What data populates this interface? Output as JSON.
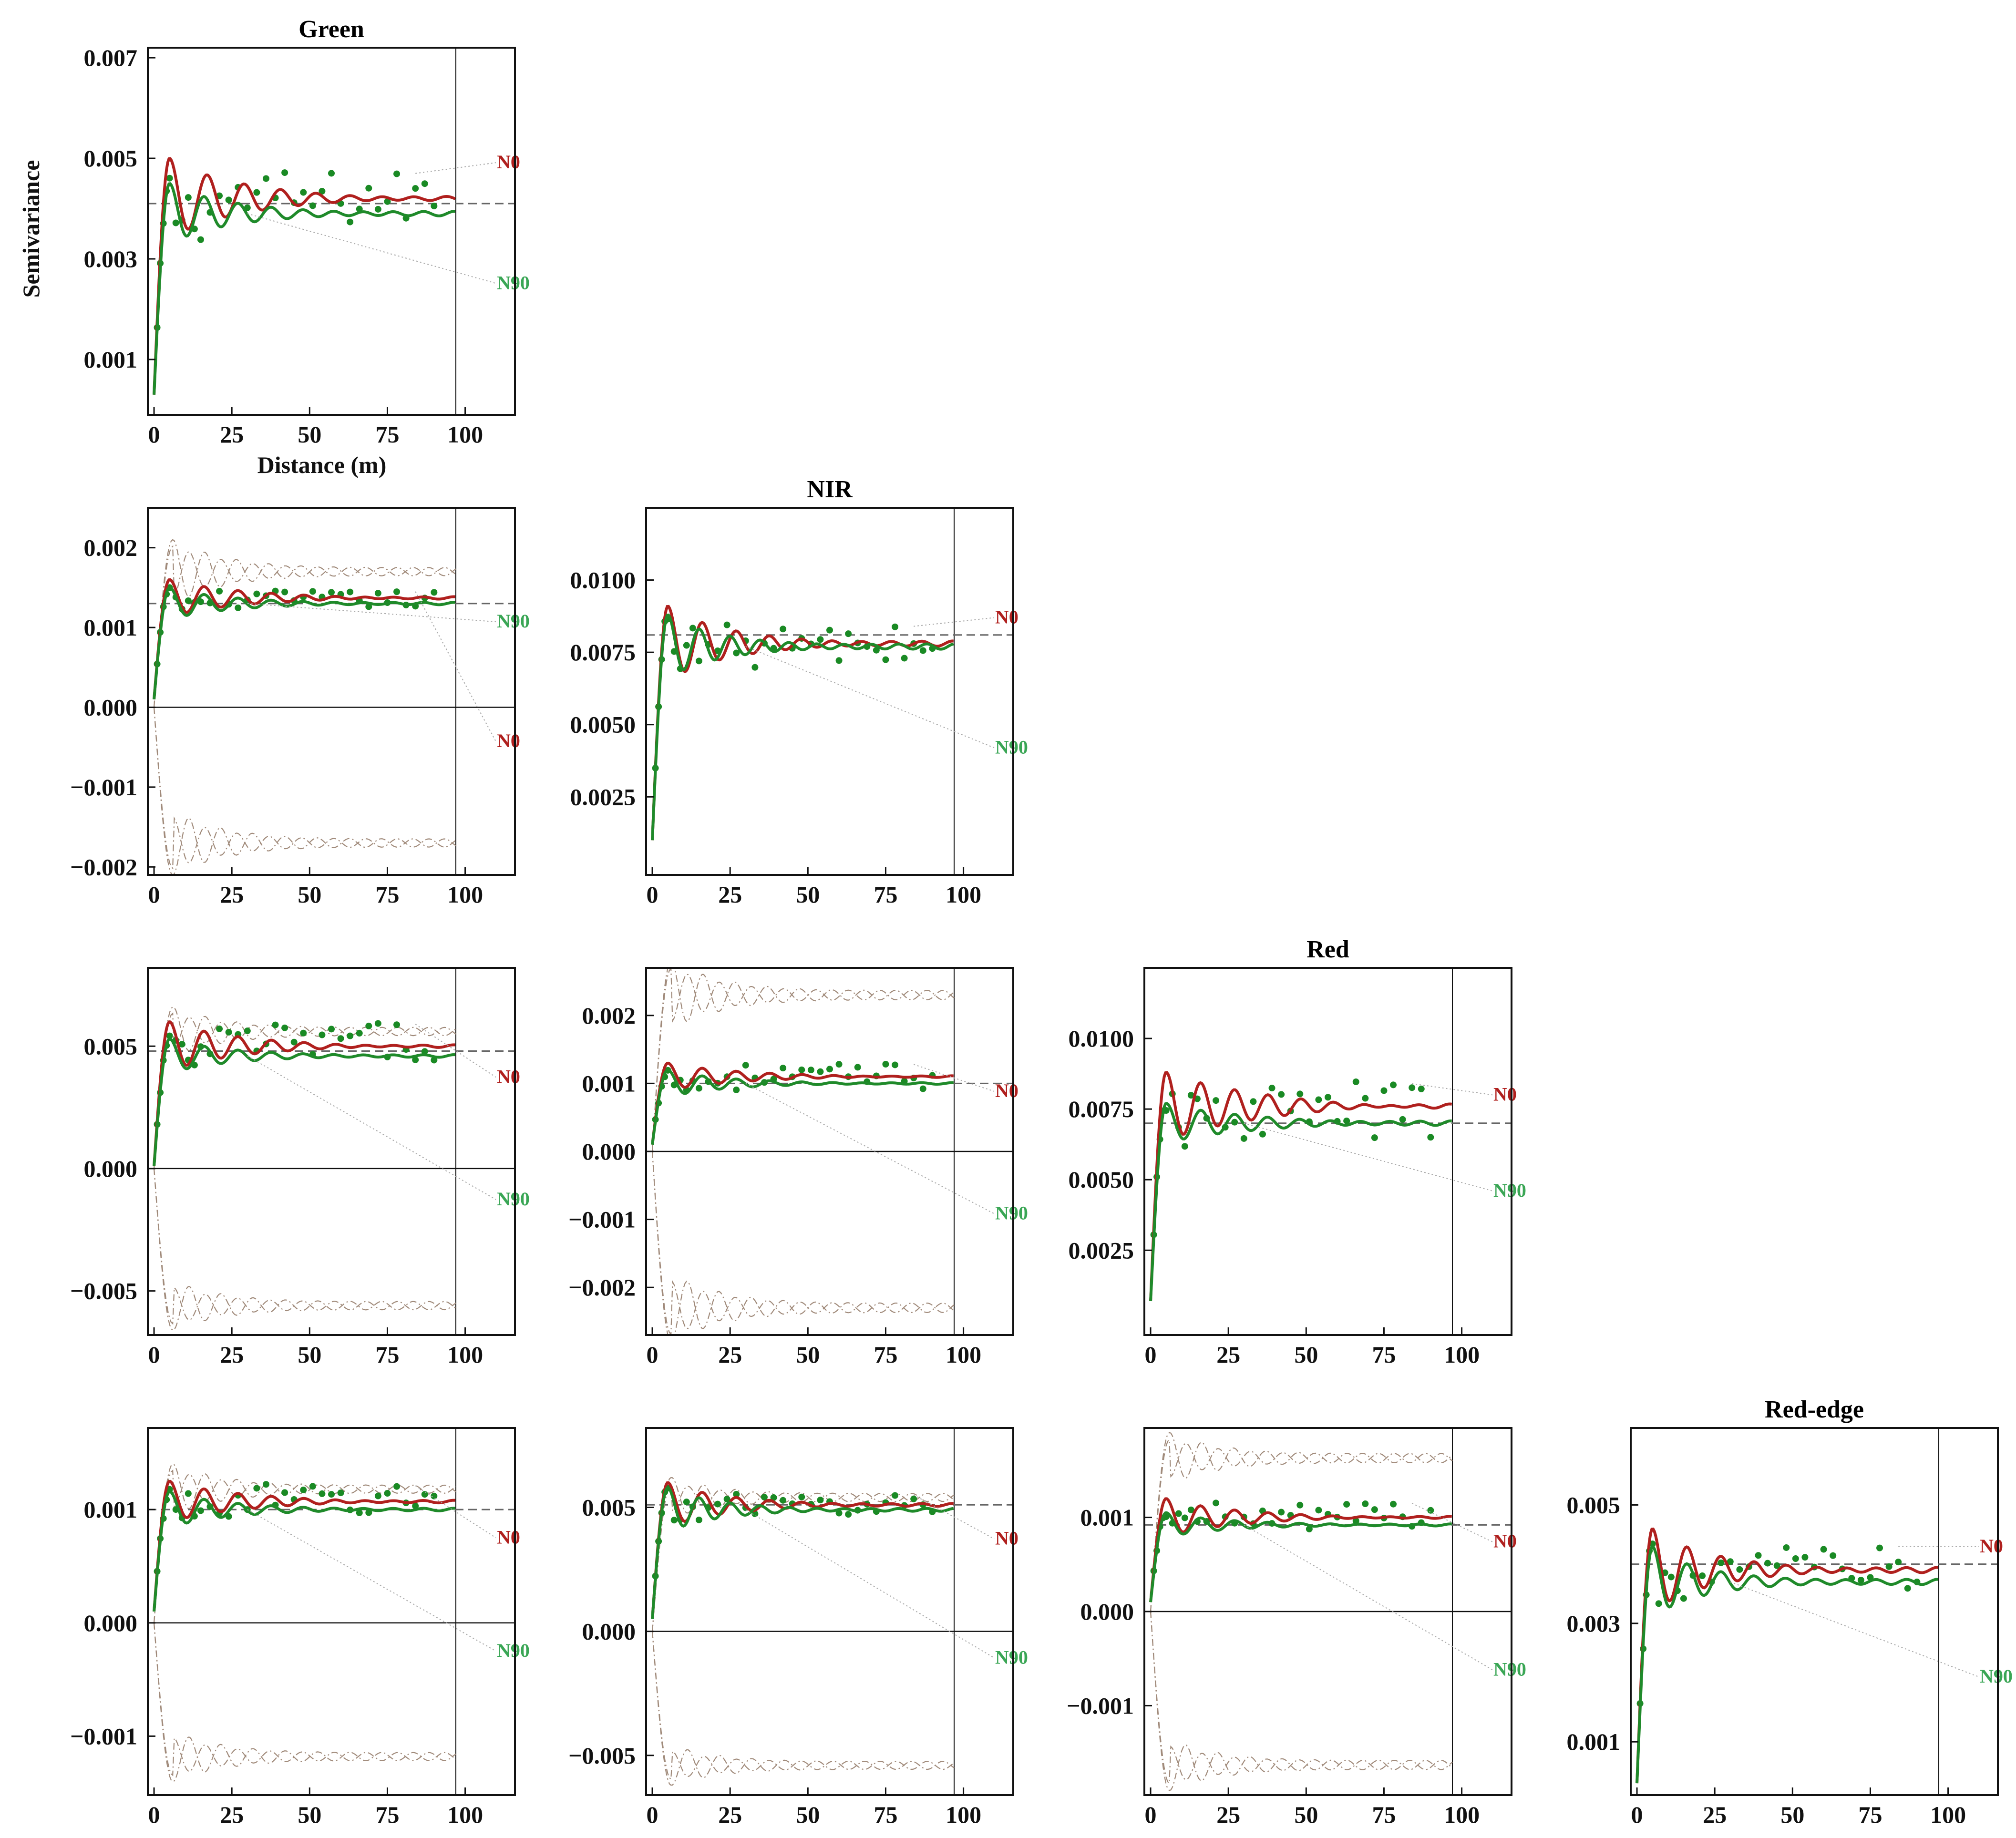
{
  "figure": {
    "ylabel": "Semivariance",
    "xlabel": "Distance (m)",
    "series_labels": [
      "N0",
      "N90"
    ],
    "colors": {
      "N0": "#b0201e",
      "N90": "#1f8a2a",
      "N90_label": "#3aa655",
      "points": "#1a8a24",
      "sill": "#666666",
      "envelope": "#a08a7a",
      "leader": "#aaaaaa",
      "axis": "#111111"
    }
  },
  "chart_data": [
    {
      "id": "green",
      "type": "scatter+line",
      "title": "Green",
      "row": 0,
      "col": 0,
      "x_ticks": [
        0,
        25,
        50,
        75,
        100
      ],
      "xlim": [
        -2,
        116
      ],
      "ylim": [
        -0.0001,
        0.0072
      ],
      "y_ticks": [
        0.001,
        0.003,
        0.005,
        0.007
      ],
      "y_tick_labels": [
        "0.001",
        "0.003",
        "0.005",
        "0.007"
      ],
      "sill": 0.0041,
      "zero_line": false,
      "envelope": null,
      "series": [
        {
          "name": "N0",
          "start": 0.0003,
          "sill": 0.0042,
          "peak": 0.005,
          "damping": 0.05,
          "period": 12
        },
        {
          "name": "N90",
          "start": 0.0003,
          "sill": 0.0039,
          "peak": 0.0045,
          "damping": 0.06,
          "period": 11
        }
      ],
      "points": {
        "mean": 0.0042,
        "spread": 0.0005
      },
      "label_y": {
        "N0": 0.0048,
        "N90": 0.0024
      },
      "xlabel": "Distance (m)",
      "ylabel": "Semivariance"
    },
    {
      "id": "green-nir",
      "type": "scatter+line",
      "title": "",
      "row": 1,
      "col": 0,
      "x_ticks": [
        0,
        25,
        50,
        75,
        100
      ],
      "xlim": [
        -2,
        116
      ],
      "ylim": [
        -0.0021,
        0.0025
      ],
      "y_ticks": [
        -0.002,
        -0.001,
        0.0,
        0.001,
        0.002
      ],
      "y_tick_labels": [
        "−0.002",
        "−0.001",
        "0.000",
        "0.001",
        "0.002"
      ],
      "sill": 0.0013,
      "zero_line": true,
      "envelope": {
        "upper": 0.0017,
        "lower": -0.0017,
        "peak_up": 0.0021,
        "peak_down": -0.0021
      },
      "series": [
        {
          "name": "N0",
          "start": 0.0001,
          "sill": 0.00137,
          "peak": 0.0016,
          "damping": 0.05,
          "period": 11
        },
        {
          "name": "N90",
          "start": 0.0001,
          "sill": 0.0013,
          "peak": 0.0015,
          "damping": 0.06,
          "period": 11
        }
      ],
      "points": {
        "mean": 0.00135,
        "spread": 0.0001
      },
      "label_y": {
        "N0": -0.0005,
        "N90": 0.001
      },
      "xlabel": "",
      "ylabel": ""
    },
    {
      "id": "nir",
      "type": "scatter+line",
      "title": "NIR",
      "row": 1,
      "col": 1,
      "x_ticks": [
        0,
        25,
        50,
        75,
        100
      ],
      "xlim": [
        -2,
        116
      ],
      "ylim": [
        -0.0002,
        0.0125
      ],
      "y_ticks": [
        0.0025,
        0.005,
        0.0075,
        0.01
      ],
      "y_tick_labels": [
        "0.0025",
        "0.0050",
        "0.0075",
        "0.0100"
      ],
      "sill": 0.0081,
      "zero_line": false,
      "envelope": null,
      "series": [
        {
          "name": "N0",
          "start": 0.001,
          "sill": 0.0078,
          "peak": 0.0091,
          "damping": 0.06,
          "period": 11
        },
        {
          "name": "N90",
          "start": 0.001,
          "sill": 0.0077,
          "peak": 0.0088,
          "damping": 0.07,
          "period": 10
        }
      ],
      "points": {
        "mean": 0.0077,
        "spread": 0.0007
      },
      "label_y": {
        "N0": 0.0085,
        "N90": 0.004
      },
      "xlabel": "",
      "ylabel": ""
    },
    {
      "id": "green-red",
      "type": "scatter+line",
      "title": "",
      "row": 2,
      "col": 0,
      "x_ticks": [
        0,
        25,
        50,
        75,
        100
      ],
      "xlim": [
        -2,
        116
      ],
      "ylim": [
        -0.0068,
        0.0082
      ],
      "y_ticks": [
        -0.005,
        0.0,
        0.005
      ],
      "y_tick_labels": [
        "−0.005",
        "0.000",
        "0.005"
      ],
      "sill": 0.0048,
      "zero_line": true,
      "envelope": {
        "upper": 0.0056,
        "lower": -0.0056,
        "peak_up": 0.0066,
        "peak_down": -0.0066
      },
      "series": [
        {
          "name": "N0",
          "start": 0.0001,
          "sill": 0.005,
          "peak": 0.006,
          "damping": 0.05,
          "period": 11
        },
        {
          "name": "N90",
          "start": 0.0001,
          "sill": 0.0046,
          "peak": 0.0053,
          "damping": 0.06,
          "period": 11
        }
      ],
      "points": {
        "mean": 0.0052,
        "spread": 0.0007
      },
      "label_y": {
        "N0": 0.0035,
        "N90": -0.0015
      },
      "xlabel": "",
      "ylabel": ""
    },
    {
      "id": "nir-red",
      "type": "scatter+line",
      "title": "",
      "row": 2,
      "col": 1,
      "x_ticks": [
        0,
        25,
        50,
        75,
        100
      ],
      "xlim": [
        -2,
        116
      ],
      "ylim": [
        -0.0027,
        0.0027
      ],
      "y_ticks": [
        -0.002,
        -0.001,
        0.0,
        0.001,
        0.002
      ],
      "y_tick_labels": [
        "−0.002",
        "−0.001",
        "0.000",
        "0.001",
        "0.002"
      ],
      "sill": 0.001,
      "zero_line": true,
      "envelope": {
        "upper": 0.0023,
        "lower": -0.0023,
        "peak_up": 0.0028,
        "peak_down": -0.0028
      },
      "series": [
        {
          "name": "N0",
          "start": 0.0001,
          "sill": 0.0011,
          "peak": 0.0013,
          "damping": 0.05,
          "period": 11
        },
        {
          "name": "N90",
          "start": 0.0001,
          "sill": 0.001,
          "peak": 0.0012,
          "damping": 0.06,
          "period": 11
        }
      ],
      "points": {
        "mean": 0.0011,
        "spread": 0.00018
      },
      "label_y": {
        "N0": 0.0008,
        "N90": -0.001
      },
      "xlabel": "",
      "ylabel": ""
    },
    {
      "id": "red",
      "type": "scatter+line",
      "title": "Red",
      "row": 2,
      "col": 2,
      "x_ticks": [
        0,
        25,
        50,
        75,
        100
      ],
      "xlim": [
        -2,
        116
      ],
      "ylim": [
        -0.0005,
        0.0125
      ],
      "y_ticks": [
        0.0025,
        0.005,
        0.0075,
        0.01
      ],
      "y_tick_labels": [
        "0.0025",
        "0.0050",
        "0.0075",
        "0.0100"
      ],
      "sill": 0.007,
      "zero_line": false,
      "envelope": null,
      "series": [
        {
          "name": "N0",
          "start": 0.0007,
          "sill": 0.0076,
          "peak": 0.0088,
          "damping": 0.04,
          "period": 11
        },
        {
          "name": "N90",
          "start": 0.0007,
          "sill": 0.007,
          "peak": 0.0077,
          "damping": 0.05,
          "period": 11
        }
      ],
      "points": {
        "mean": 0.0074,
        "spread": 0.001
      },
      "label_y": {
        "N0": 0.0078,
        "N90": 0.0044
      },
      "xlabel": "",
      "ylabel": ""
    },
    {
      "id": "green-rededge",
      "type": "scatter+line",
      "title": "",
      "row": 3,
      "col": 0,
      "x_ticks": [
        0,
        25,
        50,
        75,
        100
      ],
      "xlim": [
        -2,
        116
      ],
      "ylim": [
        -0.00152,
        0.00172
      ],
      "y_ticks": [
        -0.001,
        0.0,
        0.001
      ],
      "y_tick_labels": [
        "−0.001",
        "0.000",
        "0.001"
      ],
      "sill": 0.001,
      "zero_line": true,
      "envelope": {
        "upper": 0.00118,
        "lower": -0.00118,
        "peak_up": 0.0014,
        "peak_down": -0.0014
      },
      "series": [
        {
          "name": "N0",
          "start": 0.0001,
          "sill": 0.00107,
          "peak": 0.00125,
          "damping": 0.05,
          "period": 11
        },
        {
          "name": "N90",
          "start": 0.0001,
          "sill": 0.001,
          "peak": 0.00116,
          "damping": 0.06,
          "period": 11
        }
      ],
      "points": {
        "mean": 0.00108,
        "spread": 0.00013
      },
      "label_y": {
        "N0": 0.0007,
        "N90": -0.0003
      },
      "xlabel": "",
      "ylabel": ""
    },
    {
      "id": "nir-rededge",
      "type": "scatter+line",
      "title": "",
      "row": 3,
      "col": 1,
      "x_ticks": [
        0,
        25,
        50,
        75,
        100
      ],
      "xlim": [
        -2,
        116
      ],
      "ylim": [
        -0.0066,
        0.0082
      ],
      "y_ticks": [
        -0.005,
        0.0,
        0.005
      ],
      "y_tick_labels": [
        "−0.005",
        "0.000",
        "0.005"
      ],
      "sill": 0.0051,
      "zero_line": true,
      "envelope": {
        "upper": 0.0054,
        "lower": -0.0054,
        "peak_up": 0.0062,
        "peak_down": -0.0062
      },
      "series": [
        {
          "name": "N0",
          "start": 0.0005,
          "sill": 0.0051,
          "peak": 0.006,
          "damping": 0.06,
          "period": 11
        },
        {
          "name": "N90",
          "start": 0.0005,
          "sill": 0.0049,
          "peak": 0.0058,
          "damping": 0.07,
          "period": 10
        }
      ],
      "points": {
        "mean": 0.0051,
        "spread": 0.0004
      },
      "label_y": {
        "N0": 0.0035,
        "N90": -0.0013
      },
      "xlabel": "",
      "ylabel": ""
    },
    {
      "id": "red-rededge",
      "type": "scatter+line",
      "title": "",
      "row": 3,
      "col": 2,
      "x_ticks": [
        0,
        25,
        50,
        75,
        100
      ],
      "xlim": [
        -2,
        116
      ],
      "ylim": [
        -0.00195,
        0.00195
      ],
      "y_ticks": [
        -0.001,
        0.0,
        0.001
      ],
      "y_tick_labels": [
        "−0.001",
        "0.000",
        "0.001"
      ],
      "sill": 0.00092,
      "zero_line": true,
      "envelope": {
        "upper": 0.00163,
        "lower": -0.00163,
        "peak_up": 0.0019,
        "peak_down": -0.0019
      },
      "series": [
        {
          "name": "N0",
          "start": 0.0001,
          "sill": 0.001,
          "peak": 0.0012,
          "damping": 0.05,
          "period": 11
        },
        {
          "name": "N90",
          "start": 0.0001,
          "sill": 0.00092,
          "peak": 0.00105,
          "damping": 0.06,
          "period": 11
        }
      ],
      "points": {
        "mean": 0.001,
        "spread": 0.00015
      },
      "label_y": {
        "N0": 0.00068,
        "N90": -0.00068
      },
      "xlabel": "",
      "ylabel": ""
    },
    {
      "id": "rededge",
      "type": "scatter+line",
      "title": "Red-edge",
      "row": 3,
      "col": 3,
      "x_ticks": [
        0,
        25,
        50,
        75,
        100
      ],
      "xlim": [
        -2,
        116
      ],
      "ylim": [
        0.0001,
        0.0063
      ],
      "y_ticks": [
        0.001,
        0.003,
        0.005
      ],
      "y_tick_labels": [
        "0.001",
        "0.003",
        "0.005"
      ],
      "sill": 0.004,
      "zero_line": false,
      "envelope": null,
      "series": [
        {
          "name": "N0",
          "start": 0.0003,
          "sill": 0.0039,
          "peak": 0.0046,
          "damping": 0.06,
          "period": 11
        },
        {
          "name": "N90",
          "start": 0.0003,
          "sill": 0.0037,
          "peak": 0.0043,
          "damping": 0.07,
          "period": 11
        }
      ],
      "points": {
        "mean": 0.0039,
        "spread": 0.0004
      },
      "label_y": {
        "N0": 0.0042,
        "N90": 0.002
      },
      "xlabel": "",
      "ylabel": ""
    }
  ]
}
